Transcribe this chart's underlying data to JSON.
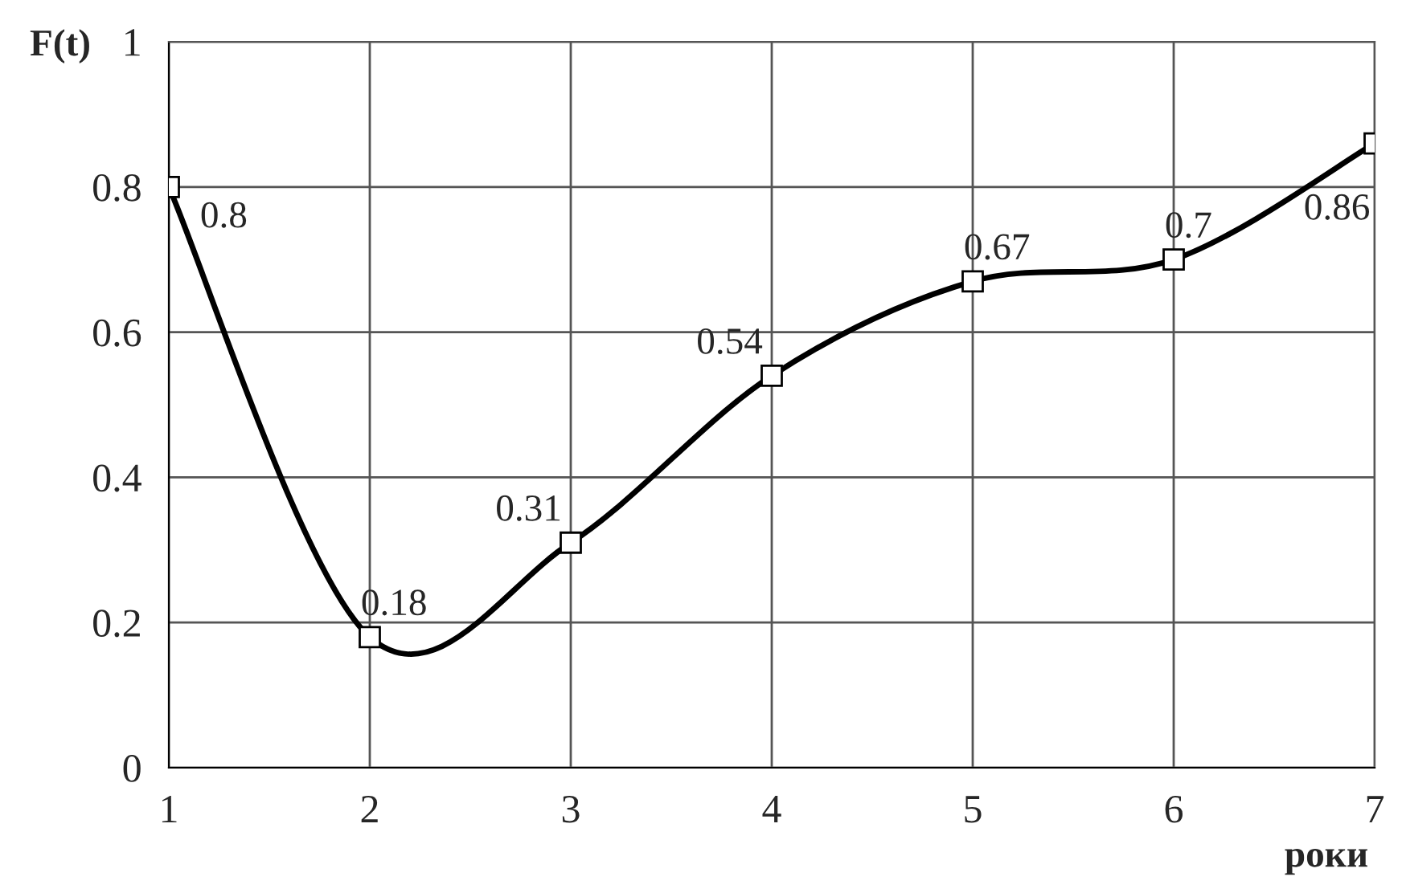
{
  "chart_data": {
    "type": "line",
    "xlabel": "роки",
    "ylabel": "F(t)",
    "x": [
      1,
      2,
      3,
      4,
      5,
      6,
      7
    ],
    "series": [
      {
        "color": "#000000",
        "values": [
          0.8,
          0.18,
          0.31,
          0.54,
          0.67,
          0.7,
          0.86
        ]
      }
    ],
    "xlim": [
      1,
      7
    ],
    "xticks": [
      1,
      2,
      3,
      4,
      5,
      6,
      7
    ],
    "ylim": [
      0,
      1
    ],
    "yticks": [
      0,
      0.2,
      0.4,
      0.6,
      0.8,
      1
    ],
    "grid": true,
    "marker": "square",
    "line_style": "solid",
    "data_labels": true
  }
}
